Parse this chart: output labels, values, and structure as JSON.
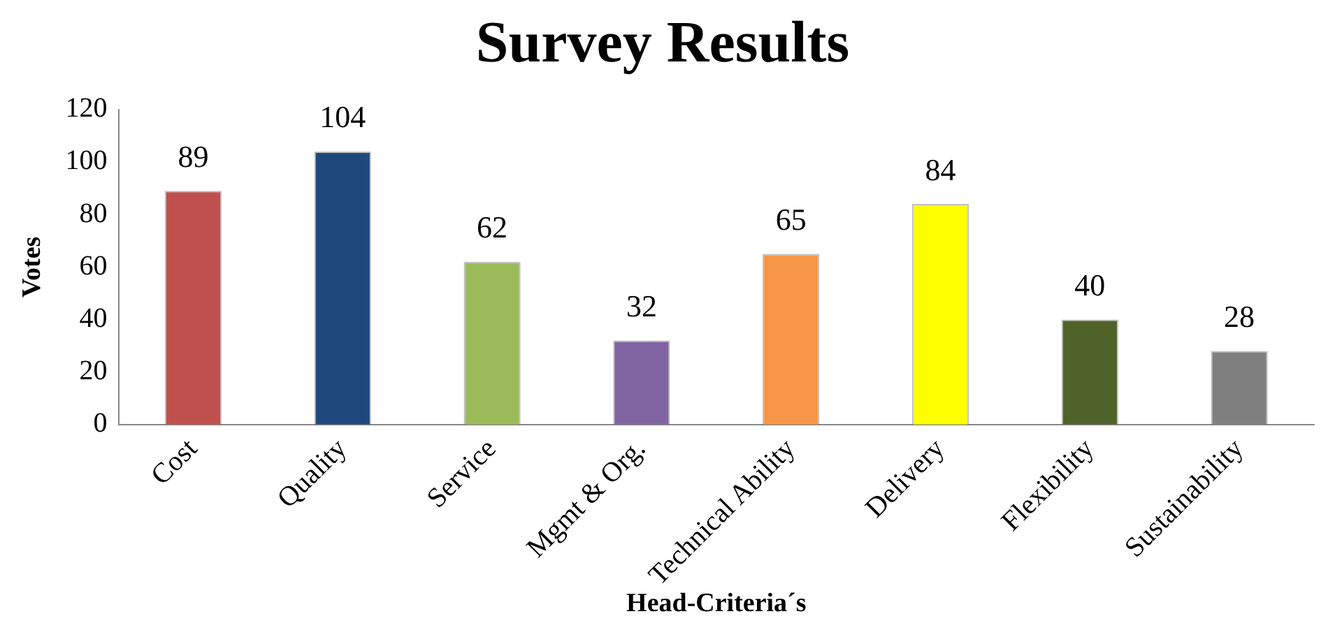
{
  "chart_data": {
    "type": "bar",
    "title": "Survey Results",
    "xlabel": "Head-Criteria´s",
    "ylabel": "Votes",
    "categories": [
      "Cost",
      "Quality",
      "Service",
      "Mgmt & Org.",
      "Technical Ability",
      "Delivery",
      "Flexibility",
      "Sustainability"
    ],
    "values": [
      89,
      104,
      62,
      32,
      65,
      84,
      40,
      28
    ],
    "colors": [
      "#c0504d",
      "#1f497d",
      "#9bbb59",
      "#8064a2",
      "#f79646",
      "#ffff00",
      "#4f6228",
      "#7f7f7f"
    ],
    "ylim": [
      0,
      120
    ],
    "yticks": [
      0,
      20,
      40,
      60,
      80,
      100,
      120
    ],
    "grid": false,
    "legend": false,
    "data_labels": true
  }
}
